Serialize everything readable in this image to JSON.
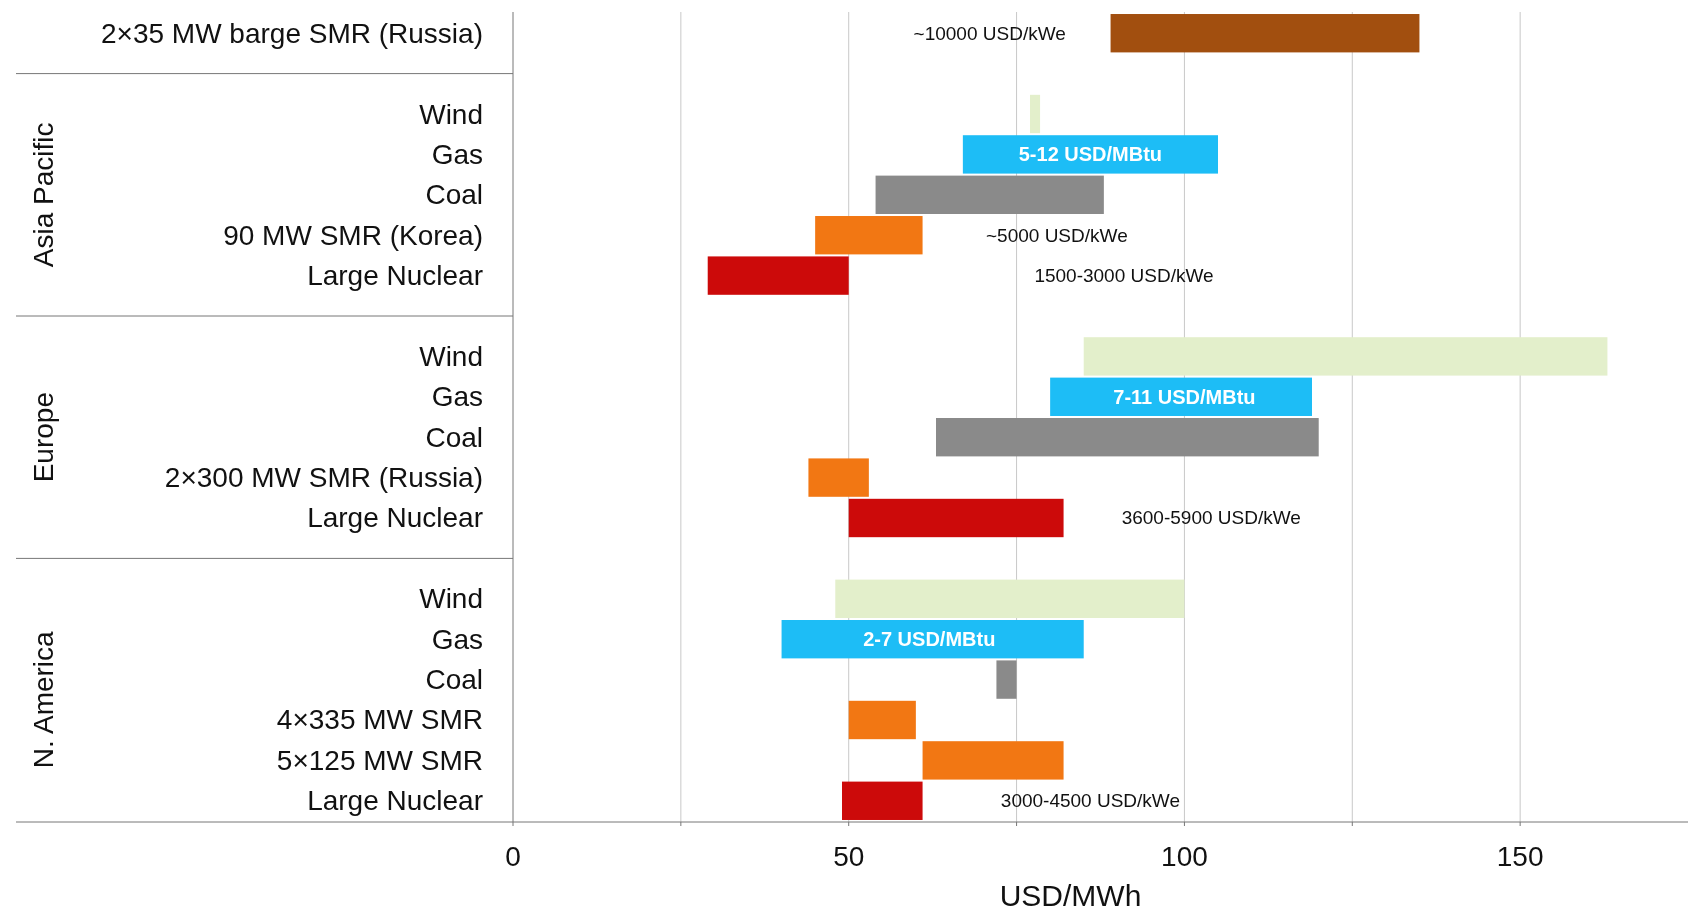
{
  "chart_data": {
    "type": "bar",
    "orientation": "horizontal",
    "xlabel": "USD/MWh",
    "categories": [
      "2×35 MW barge SMR (Russia)",
      null,
      "Wind",
      "Gas",
      "Coal",
      "90 MW SMR (Korea)",
      "Large Nuclear",
      null,
      "Wind",
      "Gas",
      "Coal",
      "2×300 MW SMR (Russia)",
      "Large Nuclear",
      null,
      "Wind",
      "Gas",
      "Coal",
      "4×335 MW SMR",
      "5×125 MW SMR",
      "Large Nuclear"
    ],
    "base": [
      89,
      null,
      77,
      67,
      54,
      45,
      29,
      null,
      85,
      80,
      63,
      44,
      50,
      null,
      48,
      40,
      72,
      50,
      61,
      49
    ],
    "values": [
      46,
      null,
      1.5,
      38,
      34,
      16,
      21,
      null,
      78,
      39,
      57,
      9,
      32,
      null,
      52,
      45,
      3,
      10,
      21,
      12
    ],
    "colors": [
      "#a24f0f",
      null,
      "#e3efcb",
      "#1dbdf6",
      "#8a8a8a",
      "#f27713",
      "#cc0a0a",
      null,
      "#e3efcb",
      "#1dbdf6",
      "#8a8a8a",
      "#f27713",
      "#cc0a0a",
      null,
      "#e3efcb",
      "#1dbdf6",
      "#8a8a8a",
      "#f27713",
      "#f27713",
      "#cc0a0a"
    ],
    "annotations": [
      "Asia Pacific",
      "Europe",
      "N. America",
      "~10000 USD/kWe",
      "5-12 USD/MBtu",
      "~5000 USD/kWe",
      "1500-3000 USD/kWe",
      "7-11 USD/MBtu",
      "3600-5900 USD/kWe",
      "2-7 USD/MBtu",
      "3000-4500 USD/kWe"
    ],
    "xlim": [
      0,
      175
    ],
    "xticks": [
      0,
      {
        "value": 25,
        "label": null
      },
      50,
      {
        "value": 75,
        "label": null
      },
      100,
      {
        "value": 125,
        "label": null
      },
      150
    ],
    "grid": "x"
  }
}
